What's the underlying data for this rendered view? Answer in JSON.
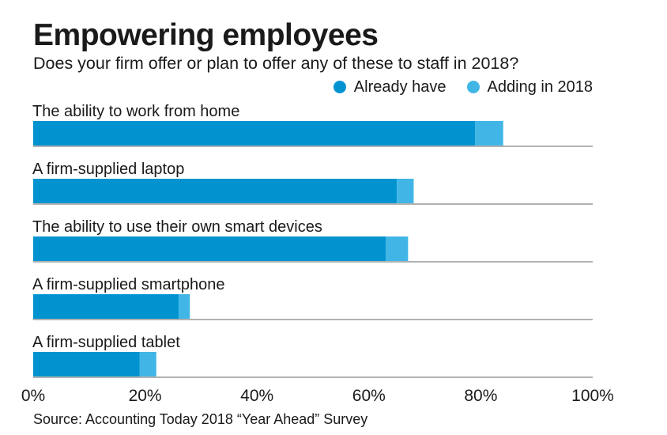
{
  "chart_data": {
    "type": "bar",
    "orientation": "horizontal",
    "stacked": true,
    "title": "Empowering employees",
    "subtitle": "Does your firm offer or plan to offer any of these to staff in 2018?",
    "categories": [
      "The ability to work from home",
      "A firm-supplied laptop",
      "The ability to use their own smart devices",
      "A firm-supplied smartphone",
      "A firm-supplied tablet"
    ],
    "series": [
      {
        "name": "Already have",
        "color": "#0093d0",
        "values": [
          79,
          65,
          63,
          26,
          19
        ]
      },
      {
        "name": "Adding in 2018",
        "color": "#41b6e6",
        "values": [
          5,
          3,
          4,
          2,
          3
        ]
      }
    ],
    "xlim": [
      0,
      100
    ],
    "xticks": [
      0,
      20,
      40,
      60,
      80,
      100
    ],
    "xtick_labels": [
      "0%",
      "20%",
      "40%",
      "60%",
      "80%",
      "100%"
    ],
    "legend_position": "top-right",
    "source": "Source: Accounting Today 2018 “Year Ahead” Survey"
  }
}
